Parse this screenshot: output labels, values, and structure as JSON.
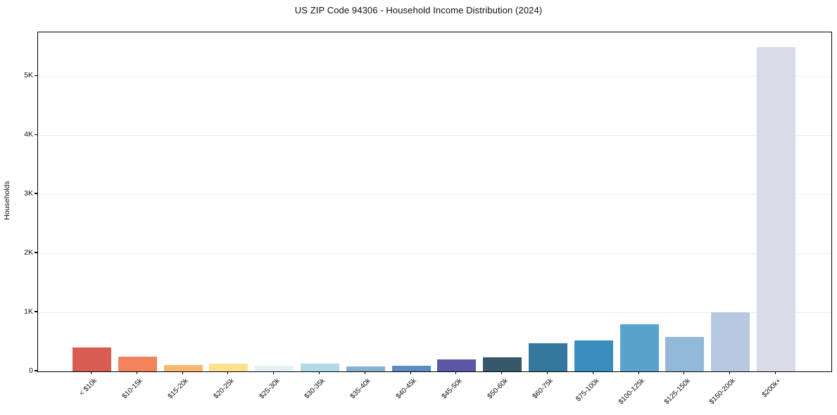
{
  "chart": {
    "title": "US ZIP Code 94306 - Household Income Distribution (2024)",
    "ylabel": "Households"
  },
  "chart_data": {
    "type": "bar",
    "title": "US ZIP Code 94306 - Household Income Distribution (2024)",
    "xlabel": "",
    "ylabel": "Households",
    "categories": [
      "< $10k",
      "$10-15k",
      "$15-20k",
      "$20-25k",
      "$25-30k",
      "$30-35k",
      "$35-40k",
      "$40-45k",
      "$45-50k",
      "$50-60k",
      "$60-75k",
      "$75-100k",
      "$100-125k",
      "$125-150k",
      "$150-200k",
      "$200k+"
    ],
    "values": [
      410,
      250,
      110,
      135,
      90,
      130,
      80,
      100,
      200,
      240,
      480,
      530,
      800,
      580,
      1000,
      5490
    ],
    "bar_colors": [
      "#d85c51",
      "#f0835c",
      "#f6b76f",
      "#fce18f",
      "#e4f1f7",
      "#b4daea",
      "#88b0d2",
      "#5c8ac3",
      "#5a57a6",
      "#35596a",
      "#35789e",
      "#3a8cbe",
      "#58a3cd",
      "#92b9d9",
      "#b7c9e1",
      "#d9dbe8"
    ],
    "ylim": [
      0,
      5740
    ],
    "yticks": {
      "values": [
        0,
        1000,
        2000,
        3000,
        4000,
        5000
      ],
      "labels": [
        "0",
        "1K",
        "2K",
        "3K",
        "4K",
        "5K"
      ]
    },
    "grid": "horizontal",
    "legend": "none"
  }
}
